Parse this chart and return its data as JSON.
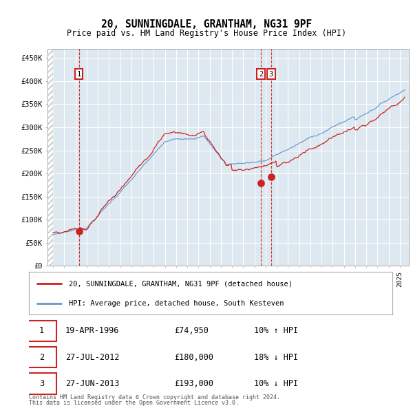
{
  "title": "20, SUNNINGDALE, GRANTHAM, NG31 9PF",
  "subtitle": "Price paid vs. HM Land Registry's House Price Index (HPI)",
  "legend_line1": "20, SUNNINGDALE, GRANTHAM, NG31 9PF (detached house)",
  "legend_line2": "HPI: Average price, detached house, South Kesteven",
  "footer1": "Contains HM Land Registry data © Crown copyright and database right 2024.",
  "footer2": "This data is licensed under the Open Government Licence v3.0.",
  "table_rows": [
    {
      "num": "1",
      "date": "19-APR-1996",
      "price": "£74,950",
      "note": "10% ↑ HPI"
    },
    {
      "num": "2",
      "date": "27-JUL-2012",
      "price": "£180,000",
      "note": "18% ↓ HPI"
    },
    {
      "num": "3",
      "date": "27-JUN-2013",
      "price": "£193,000",
      "note": "10% ↓ HPI"
    }
  ],
  "sale_dates_decimal": [
    1996.3,
    2012.57,
    2013.49
  ],
  "sale_prices": [
    74950,
    180000,
    193000
  ],
  "vline_dates": [
    1996.3,
    2012.57,
    2013.49
  ],
  "ylim": [
    0,
    470000
  ],
  "yticks": [
    0,
    50000,
    100000,
    150000,
    200000,
    250000,
    300000,
    350000,
    400000,
    450000
  ],
  "ytick_labels": [
    "£0",
    "£50K",
    "£100K",
    "£150K",
    "£200K",
    "£250K",
    "£300K",
    "£350K",
    "£400K",
    "£450K"
  ],
  "xlim_start": 1993.5,
  "xlim_end": 2025.8,
  "hpi_color": "#6699cc",
  "sale_color": "#cc2222",
  "bg_color": "#dde8f0",
  "grid_color": "#ffffff",
  "marker_color": "#cc2222"
}
